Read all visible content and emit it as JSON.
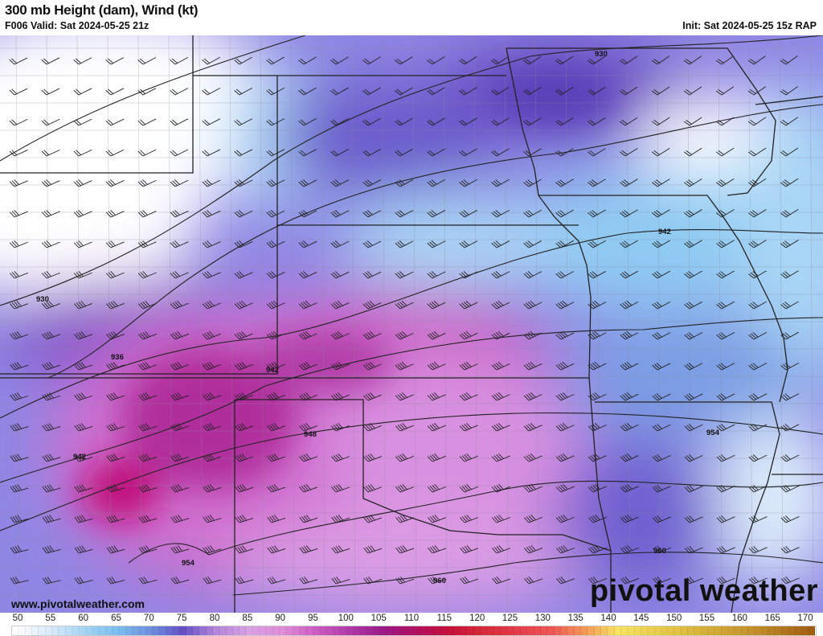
{
  "header": {
    "title": "300 mb Height (dam), Wind (kt)",
    "valid": "F006 Valid: Sat 2024-05-25 21z",
    "init": "Init: Sat 2024-05-25 15z RAP"
  },
  "footer": {
    "website": "www.pivotalweather.com",
    "brand": "pivotal weather"
  },
  "contour_labels": [
    "930",
    "930",
    "936",
    "942",
    "942",
    "942",
    "948",
    "954",
    "954",
    "960",
    "960"
  ],
  "colorbar": {
    "unit": "kt",
    "ticks": [
      "50",
      "55",
      "60",
      "65",
      "70",
      "75",
      "80",
      "85",
      "90",
      "95",
      "100",
      "105",
      "110",
      "115",
      "120",
      "125",
      "130",
      "135",
      "140",
      "145",
      "150",
      "155",
      "160",
      "165",
      "170"
    ],
    "colors": [
      "#ffffff",
      "#dcecfa",
      "#a9d6f5",
      "#7dc0f0",
      "#6e92e0",
      "#6550c6",
      "#b586dc",
      "#d9a0e6",
      "#e08cd8",
      "#cc5cc4",
      "#b03aa8",
      "#9c1888",
      "#b2105e",
      "#c8103a",
      "#d82a3a",
      "#e43e4a",
      "#ee5656",
      "#f49656",
      "#f8e262",
      "#ecd150",
      "#dfbd40",
      "#d2a836",
      "#c4922c",
      "#b27620",
      "#9c5810"
    ]
  }
}
